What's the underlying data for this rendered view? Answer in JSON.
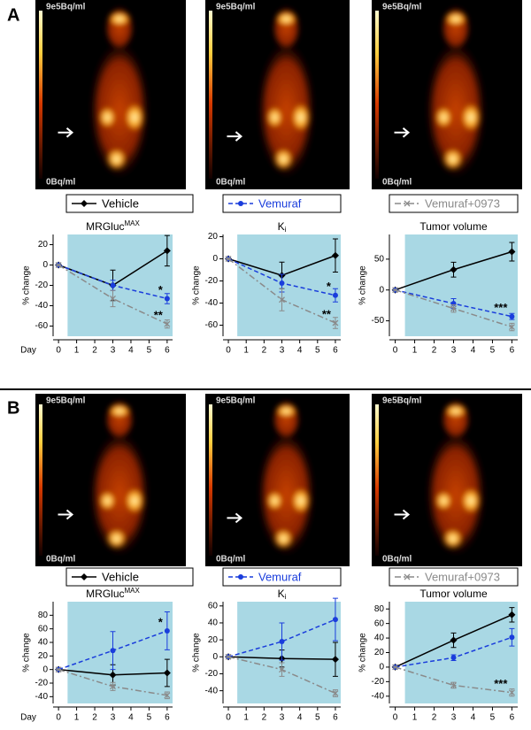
{
  "panels": [
    {
      "label": "A"
    },
    {
      "label": "B"
    }
  ],
  "images": [
    {
      "max": "9e5Bq/ml",
      "min": "0Bq/ml"
    },
    {
      "max": "9e5Bq/ml",
      "min": "0Bq/ml"
    },
    {
      "max": "9e5Bq/ml",
      "min": "0Bq/ml"
    },
    {
      "max": "9e5Bq/ml",
      "min": "0Bq/ml"
    },
    {
      "max": "9e5Bq/ml",
      "min": "0Bq/ml"
    },
    {
      "max": "9e5Bq/ml",
      "min": "0Bq/ml"
    }
  ],
  "chart_data": [
    {
      "type": "line",
      "title": "MRGluc",
      "title_sup": "MAX",
      "ylabel": "% change",
      "xlabel": "Day",
      "x": [
        0,
        3,
        6
      ],
      "xlim": [
        -0.3,
        6.3
      ],
      "xticks": [
        0,
        1,
        2,
        3,
        4,
        5,
        6
      ],
      "ylim": [
        -70,
        30
      ],
      "yticks": [
        -60,
        -40,
        -20,
        0,
        20
      ],
      "shade": [
        0.5,
        6.3
      ],
      "series": [
        {
          "name": "Vehicle",
          "color": "#000000",
          "style": "solid",
          "marker": "diamond",
          "values": [
            0,
            -20,
            14
          ],
          "errors": [
            0,
            15,
            15
          ]
        },
        {
          "name": "Vemuraf",
          "color": "#1a3ddc",
          "style": "dashed",
          "marker": "circle",
          "values": [
            0,
            -20,
            -33
          ],
          "errors": [
            0,
            5,
            5
          ]
        },
        {
          "name": "Vemuraf+0973",
          "color": "#8a8a8a",
          "style": "dashdot",
          "marker": "x",
          "values": [
            0,
            -33,
            -58
          ],
          "errors": [
            0,
            8,
            4
          ]
        }
      ],
      "annotations": [
        {
          "text": "*",
          "series": 1
        },
        {
          "text": "**",
          "series": 2
        }
      ]
    },
    {
      "type": "line",
      "title": "K",
      "title_sub": "i",
      "ylabel": "% change",
      "x": [
        0,
        3,
        6
      ],
      "xlim": [
        -0.3,
        6.3
      ],
      "xticks": [
        0,
        1,
        2,
        3,
        4,
        5,
        6
      ],
      "ylim": [
        -70,
        22
      ],
      "yticks": [
        -60,
        -40,
        -20,
        0,
        20
      ],
      "shade": [
        0.5,
        6.3
      ],
      "series": [
        {
          "color": "#000000",
          "style": "solid",
          "marker": "diamond",
          "values": [
            0,
            -15,
            3
          ],
          "errors": [
            0,
            12,
            15
          ]
        },
        {
          "color": "#1a3ddc",
          "style": "dashed",
          "marker": "circle",
          "values": [
            0,
            -22,
            -33
          ],
          "errors": [
            0,
            8,
            6
          ]
        },
        {
          "color": "#8a8a8a",
          "style": "dashdot",
          "marker": "x",
          "values": [
            0,
            -37,
            -58
          ],
          "errors": [
            0,
            10,
            5
          ]
        }
      ],
      "annotations": [
        {
          "text": "*",
          "series": 1
        },
        {
          "text": "**",
          "series": 2
        }
      ]
    },
    {
      "type": "line",
      "title": "Tumor volume",
      "ylabel": "% change",
      "x": [
        0,
        3,
        6
      ],
      "xlim": [
        -0.3,
        6.3
      ],
      "xticks": [
        0,
        1,
        2,
        3,
        4,
        5,
        6
      ],
      "ylim": [
        -75,
        90
      ],
      "yticks": [
        -50,
        0,
        50
      ],
      "shade": [
        0.5,
        6.3
      ],
      "series": [
        {
          "color": "#000000",
          "style": "solid",
          "marker": "diamond",
          "values": [
            0,
            33,
            62
          ],
          "errors": [
            0,
            12,
            15
          ]
        },
        {
          "color": "#1a3ddc",
          "style": "dashed",
          "marker": "circle",
          "values": [
            0,
            -22,
            -43
          ],
          "errors": [
            0,
            8,
            5
          ]
        },
        {
          "color": "#8a8a8a",
          "style": "dashdot",
          "marker": "x",
          "values": [
            0,
            -30,
            -60
          ],
          "errors": [
            0,
            6,
            6
          ]
        }
      ],
      "annotations": [
        {
          "text": "***",
          "series": 1
        }
      ]
    },
    {
      "type": "line",
      "title": "MRGluc",
      "title_sup": "MAX",
      "ylabel": "% change",
      "xlabel": "Day",
      "x": [
        0,
        3,
        6
      ],
      "xlim": [
        -0.3,
        6.3
      ],
      "xticks": [
        0,
        1,
        2,
        3,
        4,
        5,
        6
      ],
      "ylim": [
        -50,
        100
      ],
      "yticks": [
        -40,
        -20,
        0,
        20,
        40,
        60,
        80
      ],
      "shade": [
        0.5,
        6.3
      ],
      "series": [
        {
          "name": "Vehicle",
          "color": "#000000",
          "style": "solid",
          "marker": "diamond",
          "values": [
            0,
            -8,
            -5
          ],
          "errors": [
            0,
            15,
            20
          ]
        },
        {
          "name": "Vemuraf",
          "color": "#1a3ddc",
          "style": "dashed",
          "marker": "circle",
          "values": [
            0,
            28,
            57
          ],
          "errors": [
            0,
            28,
            28
          ]
        },
        {
          "name": "Vemuraf+0973",
          "color": "#8a8a8a",
          "style": "dashdot",
          "marker": "x",
          "values": [
            0,
            -25,
            -38
          ],
          "errors": [
            0,
            6,
            5
          ]
        }
      ],
      "annotations": [
        {
          "text": "*",
          "series": 1
        }
      ]
    },
    {
      "type": "line",
      "title": "K",
      "title_sub": "i",
      "ylabel": "% change",
      "x": [
        0,
        3,
        6
      ],
      "xlim": [
        -0.3,
        6.3
      ],
      "xticks": [
        0,
        1,
        2,
        3,
        4,
        5,
        6
      ],
      "ylim": [
        -55,
        65
      ],
      "yticks": [
        -40,
        -20,
        0,
        20,
        40,
        60
      ],
      "shade": [
        0.5,
        6.3
      ],
      "series": [
        {
          "color": "#000000",
          "style": "solid",
          "marker": "diamond",
          "values": [
            0,
            -2,
            -3
          ],
          "errors": [
            0,
            10,
            20
          ]
        },
        {
          "color": "#1a3ddc",
          "style": "dashed",
          "marker": "circle",
          "values": [
            0,
            18,
            44
          ],
          "errors": [
            0,
            22,
            25
          ]
        },
        {
          "color": "#8a8a8a",
          "style": "dashdot",
          "marker": "x",
          "values": [
            0,
            -15,
            -43
          ],
          "errors": [
            0,
            8,
            4
          ]
        }
      ],
      "annotations": []
    },
    {
      "type": "line",
      "title": "Tumor volume",
      "ylabel": "% change",
      "x": [
        0,
        3,
        6
      ],
      "xlim": [
        -0.3,
        6.3
      ],
      "xticks": [
        0,
        1,
        2,
        3,
        4,
        5,
        6
      ],
      "ylim": [
        -50,
        90
      ],
      "yticks": [
        -40,
        -20,
        0,
        20,
        40,
        60,
        80
      ],
      "shade": [
        0.5,
        6.3
      ],
      "series": [
        {
          "color": "#000000",
          "style": "solid",
          "marker": "diamond",
          "values": [
            0,
            37,
            72
          ],
          "errors": [
            0,
            10,
            10
          ]
        },
        {
          "color": "#1a3ddc",
          "style": "dashed",
          "marker": "circle",
          "values": [
            0,
            13,
            41
          ],
          "errors": [
            0,
            4,
            12
          ]
        },
        {
          "color": "#8a8a8a",
          "style": "dashdot",
          "marker": "x",
          "values": [
            0,
            -25,
            -35
          ],
          "errors": [
            0,
            4,
            5
          ]
        }
      ],
      "annotations": [
        {
          "text": "***",
          "series": 2
        }
      ]
    }
  ]
}
